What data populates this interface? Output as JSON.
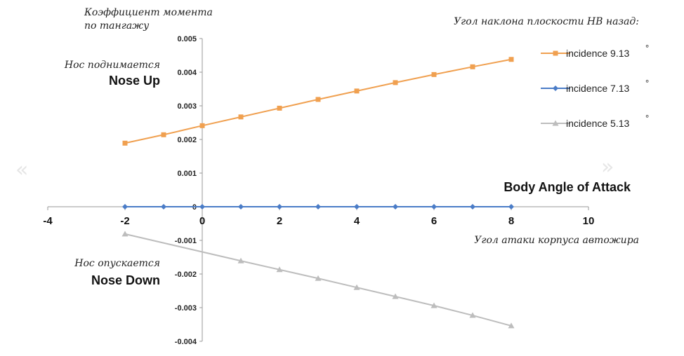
{
  "chart_data": {
    "type": "line",
    "x": [
      -2,
      -1,
      0,
      1,
      2,
      3,
      4,
      5,
      6,
      7,
      8
    ],
    "xlim": [
      -4,
      10
    ],
    "ylim": [
      -0.004,
      0.005
    ],
    "x_ticks": [
      "-4",
      "-2",
      "0",
      "2",
      "4",
      "6",
      "8",
      "10"
    ],
    "y_ticks": [
      "0.005",
      "0.004",
      "0.003",
      "0.002",
      "0.001",
      "0",
      "-0.001",
      "-0.002",
      "-0.003",
      "-0.004"
    ],
    "ylabel_ru": [
      "Коэффициент момента",
      "по тангажу"
    ],
    "xlabel_en": "Body Angle of Attack",
    "xlabel_ru": "Угол атаки корпуса автожира",
    "nose_up_ru": "Нос поднимается",
    "nose_up_en": "Nose Up",
    "nose_down_ru": "Нос опускается",
    "nose_down_en": "Nose Down",
    "legend_title_ru": "Угол наклона плоскости НВ назад:",
    "legend_position": "top-right",
    "degree_symbol": "°",
    "grid": false,
    "series": [
      {
        "name": "incidence 9.13",
        "color": "#f0a050",
        "marker": "square",
        "values": [
          0.00189,
          0.00214,
          0.00241,
          0.00267,
          0.00293,
          0.00319,
          0.00344,
          0.00369,
          0.00393,
          0.00416,
          0.00438
        ]
      },
      {
        "name": "incidence 7.13",
        "color": "#4a7cc7",
        "marker": "diamond",
        "values": [
          0,
          0,
          0,
          0,
          0,
          0,
          0,
          0,
          0,
          0,
          0
        ]
      },
      {
        "name": "incidence 5.13",
        "color": "#bdbdbd",
        "marker": "triangle",
        "values": [
          -0.00081,
          null,
          null,
          -0.00161,
          -0.00187,
          -0.00213,
          -0.0024,
          -0.00267,
          -0.00294,
          -0.00323,
          -0.00354
        ]
      }
    ]
  },
  "nav": {
    "prev_glyph": "«",
    "next_glyph": "»"
  }
}
